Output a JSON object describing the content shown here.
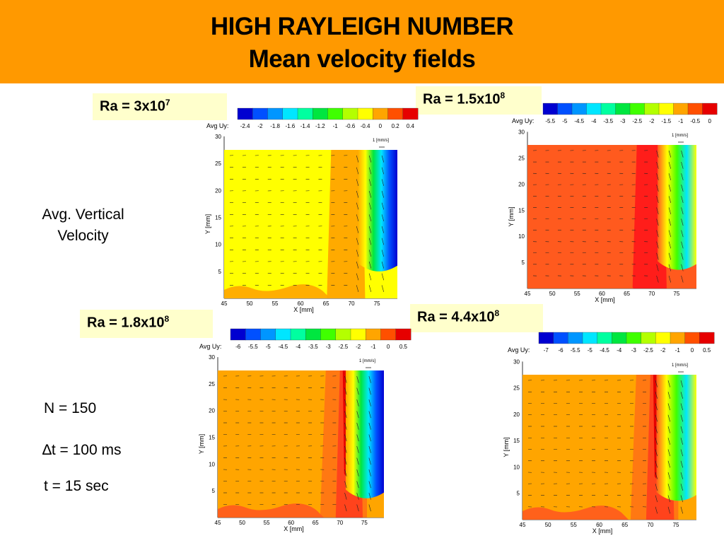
{
  "header": {
    "title_line1": "HIGH RAYLEIGH NUMBER",
    "title_line2": "Mean velocity fields",
    "background": "#FF9900"
  },
  "sidebar": {
    "label_line1": "Avg. Vertical",
    "label_line2": "Velocity",
    "n": "N = 150",
    "dt": "∆t = 100 ms",
    "t": "t = 15 sec"
  },
  "panels": [
    {
      "ra_base": "Ra = 3x10",
      "ra_exp": "7",
      "colorbar_title": "Avg Uy:",
      "colorbar_ticks": [
        "-2.4",
        "-2",
        "-1.8",
        "-1.6",
        "-1.4",
        "-1.2",
        "-1",
        "-0.6",
        "-0.4",
        "0",
        "0.2",
        "0.4"
      ],
      "vector_scale": "1 [mm/s]",
      "x_ticks": [
        "45",
        "50",
        "55",
        "60",
        "65",
        "70",
        "75"
      ],
      "y_ticks": [
        "5",
        "10",
        "15",
        "20",
        "25",
        "30"
      ],
      "xlabel": "X [mm]",
      "ylabel": "Y [mm]",
      "field_color": "#FFFF00",
      "band_color": "#FFA500",
      "jet": "blue"
    },
    {
      "ra_base": "Ra = 1.5x10",
      "ra_exp": "8",
      "colorbar_title": "Avg Uy:",
      "colorbar_ticks": [
        "-5.5",
        "-5",
        "-4.5",
        "-4",
        "-3.5",
        "-3",
        "-2.5",
        "-2",
        "-1.5",
        "-1",
        "-0.5",
        "0"
      ],
      "vector_scale": "1 [mm/s]",
      "x_ticks": [
        "45",
        "50",
        "55",
        "60",
        "65",
        "70",
        "75"
      ],
      "y_ticks": [
        "5",
        "10",
        "15",
        "20",
        "25",
        "30"
      ],
      "xlabel": "X [mm]",
      "ylabel": "Y [mm]",
      "field_color": "#FF5A1E",
      "band_color": "#FF1A1A",
      "jet": "green"
    },
    {
      "ra_base": "Ra = 1.8x10",
      "ra_exp": "8",
      "colorbar_title": "Avg Uy:",
      "colorbar_ticks": [
        "-6",
        "-5.5",
        "-5",
        "-4.5",
        "-4",
        "-3.5",
        "-3",
        "-2.5",
        "-2",
        "-1",
        "0",
        "0.5"
      ],
      "vector_scale": "1 [mm/s]",
      "x_ticks": [
        "45",
        "50",
        "55",
        "60",
        "65",
        "70",
        "75"
      ],
      "y_ticks": [
        "5",
        "10",
        "15",
        "20",
        "25",
        "30"
      ],
      "xlabel": "X [mm]",
      "ylabel": "Y [mm]",
      "field_color": "#FFA500",
      "band_color": "#FF1A1A",
      "jet": "blue"
    },
    {
      "ra_base": "Ra = 4.4x10",
      "ra_exp": "8",
      "colorbar_title": "Avg Uy:",
      "colorbar_ticks": [
        "-7",
        "-6",
        "-5.5",
        "-5",
        "-4.5",
        "-4",
        "-3",
        "-2.5",
        "-2",
        "-1",
        "0",
        "0.5"
      ],
      "vector_scale": "1 [mm/s]",
      "x_ticks": [
        "45",
        "50",
        "55",
        "60",
        "65",
        "70",
        "75"
      ],
      "y_ticks": [
        "5",
        "10",
        "15",
        "20",
        "25",
        "30"
      ],
      "xlabel": "X [mm]",
      "ylabel": "Y [mm]",
      "field_color": "#FFA500",
      "band_color": "#FF1A1A",
      "jet": "green"
    }
  ],
  "colorbar_colors": [
    "#0000D0",
    "#0050FF",
    "#0096FF",
    "#00E6FF",
    "#00FFA0",
    "#00E640",
    "#40FF00",
    "#B4FF00",
    "#FFFF00",
    "#FFA500",
    "#FF5000",
    "#E60000"
  ]
}
